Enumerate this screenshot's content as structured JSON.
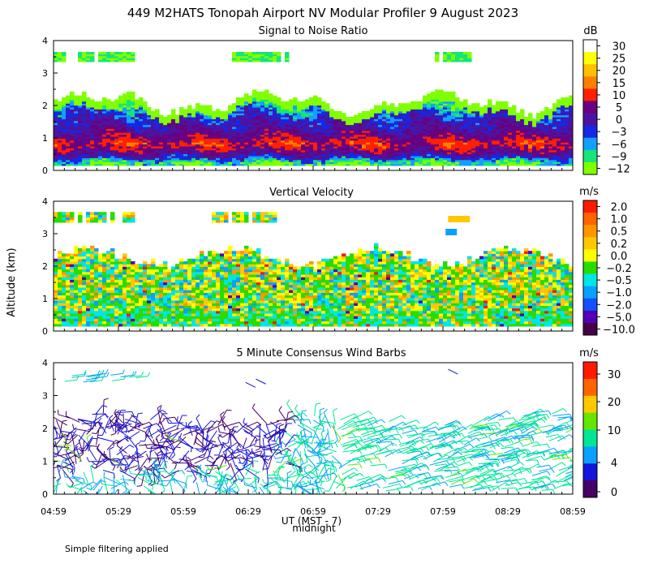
{
  "title": "449 M2HATS Tonopah Airport NV Modular Profiler  9 August 2023",
  "y_axis_label": "Altitude (km)",
  "x_axis": {
    "label": "UT  (MST - 7)",
    "sublabel": "midnight",
    "ticks": [
      "04:59",
      "05:29",
      "05:59",
      "06:29",
      "06:59",
      "07:29",
      "07:59",
      "08:29",
      "08:59"
    ]
  },
  "footnote": "Simple filtering applied",
  "chart_data": [
    {
      "type": "heatmap",
      "title": "Signal to Noise Ratio",
      "colorbar_unit": "dB",
      "ylim": [
        0,
        4
      ],
      "y_ticks": [
        "0",
        "1",
        "2",
        "3",
        "4"
      ],
      "x_range_ut": [
        "04:59",
        "08:59"
      ],
      "colorbar": {
        "labels": [
          "30",
          "25",
          "20",
          "15",
          "10",
          "5",
          "0",
          "−3",
          "−6",
          "−9",
          "−12"
        ],
        "colors": [
          "#ffffff",
          "#ffff00",
          "#ffc000",
          "#ff8000",
          "#ff2000",
          "#6a0080",
          "#4b14a0",
          "#1428e6",
          "#14a0ff",
          "#14e678",
          "#80ff00"
        ]
      },
      "profile_by_altitude_km": [
        {
          "alt": 0.2,
          "value_db": -9
        },
        {
          "alt": 0.5,
          "value_db": 5
        },
        {
          "alt": 0.8,
          "value_db": 12
        },
        {
          "alt": 1.2,
          "value_db": 4
        },
        {
          "alt": 1.6,
          "value_db": 0
        },
        {
          "alt": 2.0,
          "value_db": -5
        },
        {
          "alt": 2.3,
          "value_db": -12
        },
        {
          "alt": 3.4,
          "value_db": -12
        }
      ]
    },
    {
      "type": "heatmap",
      "title": "Vertical Velocity",
      "colorbar_unit": "m/s",
      "ylim": [
        0,
        4
      ],
      "y_ticks": [
        "0",
        "1",
        "2",
        "3",
        "4"
      ],
      "x_range_ut": [
        "04:59",
        "08:59"
      ],
      "colorbar": {
        "labels": [
          "2.0",
          "1.0",
          "0.5",
          "0.2",
          "0.0",
          "−0.2",
          "−0.5",
          "−1.0",
          "−2.0",
          "−5.0",
          "−10.0"
        ],
        "colors": [
          "#ff1a00",
          "#ff6400",
          "#ff9600",
          "#ffc800",
          "#ffff00",
          "#28dc00",
          "#00e6e6",
          "#0aa0ff",
          "#1450ff",
          "#5000b4",
          "#460046"
        ]
      },
      "data_top_km": 2.5
    },
    {
      "type": "scatter",
      "title": "5 Minute Consensus Wind Barbs",
      "colorbar_unit": "m/s",
      "ylim": [
        0,
        4
      ],
      "y_ticks": [
        "0",
        "1",
        "2",
        "3",
        "4"
      ],
      "x_range_ut": [
        "04:59",
        "08:59"
      ],
      "colorbar": {
        "labels": [
          "30",
          "20",
          "10",
          "4",
          "0"
        ],
        "colors": [
          "#ff1a00",
          "#ff6400",
          "#ffc800",
          "#64e600",
          "#00e696",
          "#0aa0ff",
          "#1414dc",
          "#460064"
        ]
      },
      "data_top_km": 2.3
    }
  ]
}
